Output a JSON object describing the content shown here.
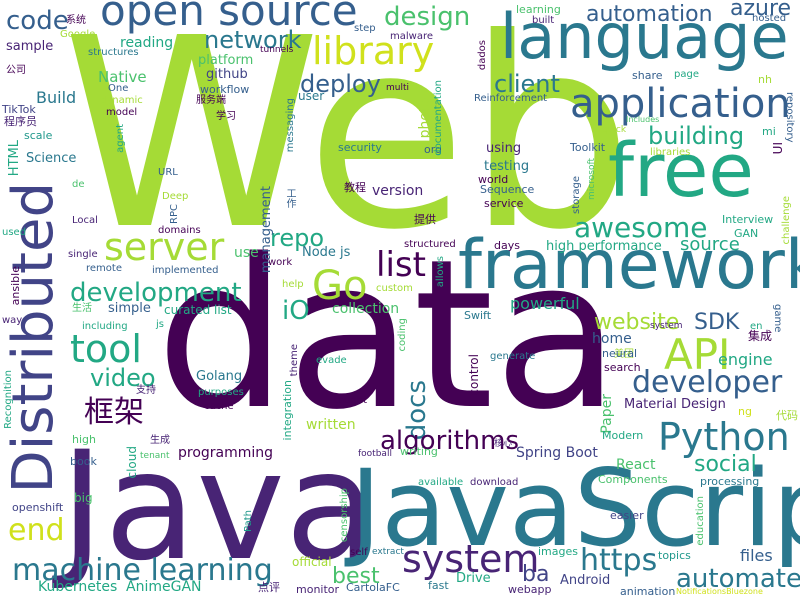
{
  "palette": {
    "lime": "#a5db36",
    "green": "#4ac16d",
    "teal": "#22a884",
    "cyan": "#1f988b",
    "blue": "#2a788e",
    "slate": "#355f8d",
    "indigo": "#414487",
    "purple": "#482475",
    "dark": "#440154",
    "yellow": "#d0e11c"
  },
  "words": [
    {
      "text": "Web",
      "color": "#a5db36"
    },
    {
      "text": "data",
      "color": "#440154"
    },
    {
      "text": "Java",
      "color": "#482475"
    },
    {
      "text": "JavaScript",
      "color": "#2a788e"
    },
    {
      "text": "language",
      "color": "#2a788e"
    },
    {
      "text": "free",
      "color": "#22a884"
    },
    {
      "text": "framework",
      "color": "#2a788e"
    },
    {
      "text": "Distributed",
      "color": "#414487"
    },
    {
      "text": "open source",
      "color": "#355f8d"
    },
    {
      "text": "application",
      "color": "#355f8d"
    },
    {
      "text": "library",
      "color": "#d0e11c"
    },
    {
      "text": "server",
      "color": "#a5db36"
    },
    {
      "text": "Go",
      "color": "#a5db36"
    },
    {
      "text": "list",
      "color": "#440154"
    },
    {
      "text": "API",
      "color": "#a5db36"
    },
    {
      "text": "tool",
      "color": "#22a884"
    },
    {
      "text": "developer",
      "color": "#355f8d"
    },
    {
      "text": "Python",
      "color": "#2a788e"
    },
    {
      "text": "machine learning",
      "color": "#2a788e"
    },
    {
      "text": "system",
      "color": "#482475"
    },
    {
      "text": "automate",
      "color": "#2a788e"
    },
    {
      "text": "https",
      "color": "#2a788e"
    },
    {
      "text": "code",
      "color": "#355f8d"
    },
    {
      "text": "design",
      "color": "#4ac16d"
    },
    {
      "text": "automation",
      "color": "#355f8d"
    },
    {
      "text": "azure",
      "color": "#355f8d"
    },
    {
      "text": "network",
      "color": "#2a788e"
    },
    {
      "text": "deploy",
      "color": "#355f8d"
    },
    {
      "text": "client",
      "color": "#2a788e"
    },
    {
      "text": "building",
      "color": "#22a884"
    },
    {
      "text": "awesome",
      "color": "#22a884"
    },
    {
      "text": "development",
      "color": "#22a884"
    },
    {
      "text": "repo",
      "color": "#22a884"
    },
    {
      "text": "website",
      "color": "#a5db36"
    },
    {
      "text": "SDK",
      "color": "#355f8d"
    },
    {
      "text": "iO",
      "color": "#22a884"
    },
    {
      "text": "video",
      "color": "#22a884"
    },
    {
      "text": "框架",
      "color": "#440154"
    },
    {
      "text": "docs",
      "color": "#2a788e"
    },
    {
      "text": "algorithms",
      "color": "#440154"
    },
    {
      "text": "social",
      "color": "#22a884"
    },
    {
      "text": "end",
      "color": "#d0e11c"
    },
    {
      "text": "best",
      "color": "#4ac16d"
    },
    {
      "text": "ba",
      "color": "#414487"
    },
    {
      "text": "source",
      "color": "#22a884"
    },
    {
      "text": "engine",
      "color": "#22a884"
    },
    {
      "text": "Build",
      "color": "#2a788e"
    },
    {
      "text": "Native",
      "color": "#4ac16d"
    },
    {
      "text": "reading",
      "color": "#22a884"
    },
    {
      "text": "sample",
      "color": "#482475"
    },
    {
      "text": "github",
      "color": "#414487"
    },
    {
      "text": "platform",
      "color": "#4ac16d"
    },
    {
      "text": "workflow",
      "color": "#355f8d"
    },
    {
      "text": "home",
      "color": "#355f8d"
    },
    {
      "text": "collection",
      "color": "#4ac16d"
    },
    {
      "text": "powerful",
      "color": "#22a884"
    },
    {
      "text": "simple",
      "color": "#355f8d"
    },
    {
      "text": "curated list",
      "color": "#22a884"
    },
    {
      "text": "programming",
      "color": "#440154"
    },
    {
      "text": "Golang",
      "color": "#2a788e"
    },
    {
      "text": "Spring Boot",
      "color": "#414487"
    },
    {
      "text": "Material Design",
      "color": "#482475"
    },
    {
      "text": "React",
      "color": "#4ac16d"
    },
    {
      "text": "Drive",
      "color": "#22a884"
    },
    {
      "text": "Android",
      "color": "#414487"
    },
    {
      "text": "files",
      "color": "#355f8d"
    },
    {
      "text": "Kubernetes",
      "color": "#22a884"
    },
    {
      "text": "AnimeGAN",
      "color": "#22a884"
    },
    {
      "text": "management",
      "color": "#355f8d"
    },
    {
      "text": "Node js",
      "color": "#2a788e"
    },
    {
      "text": "testing",
      "color": "#2a788e"
    },
    {
      "text": "using",
      "color": "#482475"
    },
    {
      "text": "version",
      "color": "#482475"
    },
    {
      "text": "high performance",
      "color": "#22a884"
    },
    {
      "text": "written",
      "color": "#a5db36"
    },
    {
      "text": "Paper",
      "color": "#4ac16d"
    },
    {
      "text": "photo",
      "color": "#a5db36"
    },
    {
      "text": "user",
      "color": "#2a788e"
    },
    {
      "text": "game",
      "color": "#355f8d"
    },
    {
      "text": "learning",
      "color": "#4ac16d"
    },
    {
      "text": "security",
      "color": "#2a788e"
    },
    {
      "text": "openshift",
      "color": "#414487"
    },
    {
      "text": "Science",
      "color": "#2a788e"
    },
    {
      "text": "HTML",
      "color": "#22a884"
    },
    {
      "text": "TikTok",
      "color": "#414487"
    },
    {
      "text": "程序员",
      "color": "#482475"
    },
    {
      "text": "scale",
      "color": "#1f988b"
    },
    {
      "text": "Google",
      "color": "#a5db36"
    },
    {
      "text": "structures",
      "color": "#2a788e"
    },
    {
      "text": "One",
      "color": "#355f8d"
    },
    {
      "text": "dynamic",
      "color": "#a5db36"
    },
    {
      "text": "model",
      "color": "#440154"
    },
    {
      "text": "agent",
      "color": "#22a884"
    },
    {
      "text": "URL",
      "color": "#355f8d"
    },
    {
      "text": "Deep",
      "color": "#a5db36"
    },
    {
      "text": "RPC",
      "color": "#355f8d"
    },
    {
      "text": "domains",
      "color": "#440154"
    },
    {
      "text": "implemented",
      "color": "#355f8d"
    },
    {
      "text": "Local",
      "color": "#482475"
    },
    {
      "text": "single",
      "color": "#482475"
    },
    {
      "text": "remote",
      "color": "#355f8d"
    },
    {
      "text": "used",
      "color": "#22a884"
    },
    {
      "text": "ansible",
      "color": "#440154"
    },
    {
      "text": "way",
      "color": "#482475"
    },
    {
      "text": "生活",
      "color": "#4ac16d"
    },
    {
      "text": "including",
      "color": "#22a884"
    },
    {
      "text": "Recognition",
      "color": "#22a884"
    },
    {
      "text": "cache",
      "color": "#440154"
    },
    {
      "text": "purposes",
      "color": "#22a884"
    },
    {
      "text": "支持",
      "color": "#482475"
    },
    {
      "text": "生成",
      "color": "#482475"
    },
    {
      "text": "high",
      "color": "#4ac16d"
    },
    {
      "text": "book",
      "color": "#355f8d"
    },
    {
      "text": "big",
      "color": "#4ac16d"
    },
    {
      "text": "cloud",
      "color": "#22a884"
    },
    {
      "text": "tenant",
      "color": "#4ac16d"
    },
    {
      "text": "Path",
      "color": "#1f988b"
    },
    {
      "text": "integration",
      "color": "#22a884"
    },
    {
      "text": "taught",
      "color": "#440154"
    },
    {
      "text": "evade",
      "color": "#22a884"
    },
    {
      "text": "theme",
      "color": "#482475"
    },
    {
      "text": "control",
      "color": "#440154"
    },
    {
      "text": "football",
      "color": "#482475"
    },
    {
      "text": "核心",
      "color": "#482475"
    },
    {
      "text": "writing",
      "color": "#4ac16d"
    },
    {
      "text": "available",
      "color": "#22a884"
    },
    {
      "text": "download",
      "color": "#482475"
    },
    {
      "text": "censorship",
      "color": "#4ac16d"
    },
    {
      "text": "generate",
      "color": "#2a788e"
    },
    {
      "text": "self",
      "color": "#440154"
    },
    {
      "text": "extract",
      "color": "#2a788e"
    },
    {
      "text": "images",
      "color": "#22a884"
    },
    {
      "text": "official",
      "color": "#a5db36"
    },
    {
      "text": "monitor",
      "color": "#482475"
    },
    {
      "text": "CartolaFC",
      "color": "#355f8d"
    },
    {
      "text": "fast",
      "color": "#2a788e"
    },
    {
      "text": "webapp",
      "color": "#482475"
    },
    {
      "text": "点评",
      "color": "#482475"
    },
    {
      "text": "animation",
      "color": "#355f8d"
    },
    {
      "text": "NotificationsBluezone",
      "color": "#d0e11c"
    },
    {
      "text": "topics",
      "color": "#1f988b"
    },
    {
      "text": "education",
      "color": "#4ac16d"
    },
    {
      "text": "easier",
      "color": "#414487"
    },
    {
      "text": "Components",
      "color": "#4ac16d"
    },
    {
      "text": "processing",
      "color": "#2a788e"
    },
    {
      "text": "Modern",
      "color": "#22a884"
    },
    {
      "text": "代码",
      "color": "#a5db36"
    },
    {
      "text": "ng",
      "color": "#d0e11c"
    },
    {
      "text": "集成",
      "color": "#440154"
    },
    {
      "text": "美团",
      "color": "#a5db36"
    },
    {
      "text": "neural",
      "color": "#355f8d"
    },
    {
      "text": "search",
      "color": "#440154"
    },
    {
      "text": "en",
      "color": "#22a884"
    },
    {
      "text": "system ",
      "color": "#482475"
    },
    {
      "text": "Interview",
      "color": "#22a884"
    },
    {
      "text": "GAN",
      "color": "#22a884"
    },
    {
      "text": "challenge",
      "color": "#a5db36"
    },
    {
      "text": "days",
      "color": "#440154"
    },
    {
      "text": "structured",
      "color": "#440154"
    },
    {
      "text": "allows",
      "color": "#22a884"
    },
    {
      "text": "coding",
      "color": "#4ac16d"
    },
    {
      "text": "custom",
      "color": "#a5db36"
    },
    {
      "text": "help",
      "color": "#a5db36"
    },
    {
      "text": "Swift",
      "color": "#2a788e"
    },
    {
      "text": "提供",
      "color": "#440154"
    },
    {
      "text": "教程",
      "color": "#440154"
    },
    {
      "text": "world",
      "color": "#440154"
    },
    {
      "text": "Sequence",
      "color": "#355f8d"
    },
    {
      "text": "service",
      "color": "#440154"
    },
    {
      "text": "org",
      "color": "#355f8d"
    },
    {
      "text": "Toolkit",
      "color": "#355f8d"
    },
    {
      "text": "microsoft",
      "color": "#4ac16d"
    },
    {
      "text": "storage",
      "color": "#355f8d"
    },
    {
      "text": "quick",
      "color": "#a5db36"
    },
    {
      "text": "libraries",
      "color": "#a5db36"
    },
    {
      "text": "UI",
      "color": "#440154"
    },
    {
      "text": "mi",
      "color": "#22a884"
    },
    {
      "text": "repository",
      "color": "#355f8d"
    },
    {
      "text": "nh",
      "color": "#a5db36"
    },
    {
      "text": "hosted",
      "color": "#355f8d"
    },
    {
      "text": "built",
      "color": "#482475"
    },
    {
      "text": "share",
      "color": "#355f8d"
    },
    {
      "text": "page",
      "color": "#22a884"
    },
    {
      "text": "Includes",
      "color": "#4ac16d"
    },
    {
      "text": "Reinforcement",
      "color": "#355f8d"
    },
    {
      "text": "documentation",
      "color": "#22a884"
    },
    {
      "text": "dados",
      "color": "#440154"
    },
    {
      "text": "multi",
      "color": "#440154"
    },
    {
      "text": "malware",
      "color": "#482475"
    },
    {
      "text": "tunnels",
      "color": "#440154"
    },
    {
      "text": "step",
      "color": "#355f8d"
    },
    {
      "text": "messaging",
      "color": "#2a788e"
    },
    {
      "text": "服务端",
      "color": "#440154"
    },
    {
      "text": "学习",
      "color": "#440154"
    },
    {
      "text": "工作",
      "color": "#355f8d"
    },
    {
      "text": "公司",
      "color": "#440154"
    },
    {
      "text": "系统",
      "color": "#440154"
    },
    {
      "text": "de",
      "color": "#4ac16d"
    },
    {
      "text": "work",
      "color": "#440154"
    },
    {
      "text": "use",
      "color": "#4ac16d"
    },
    {
      "text": "js",
      "color": "#22a884"
    }
  ]
}
